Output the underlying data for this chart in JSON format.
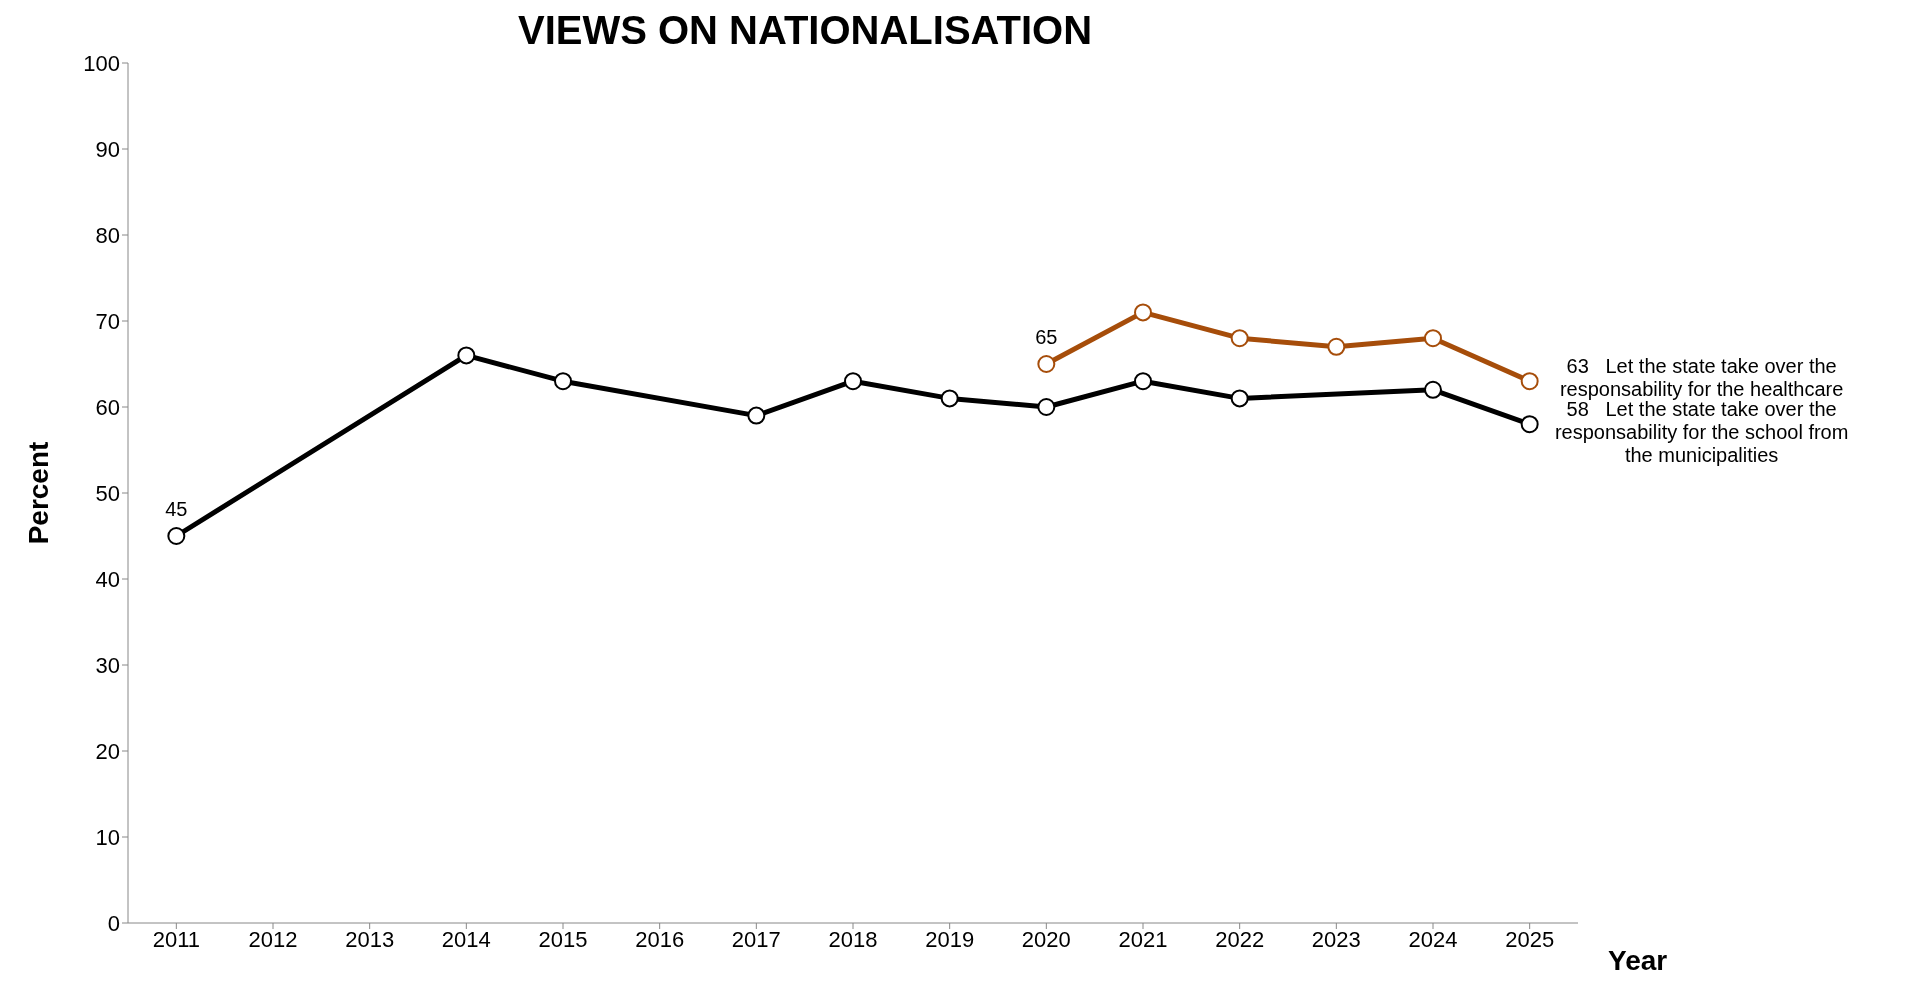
{
  "chart_data": {
    "type": "line",
    "title": "VIEWS ON NATIONALISATION",
    "xlabel": "Year",
    "ylabel": "Percent",
    "categories": [
      "2011",
      "2012",
      "2013",
      "2014",
      "2015",
      "2016",
      "2017",
      "2018",
      "2019",
      "2020",
      "2021",
      "2022",
      "2023",
      "2024",
      "2025"
    ],
    "series": [
      {
        "name": "Let the state take over the responsability for the healthcare",
        "color": "#a64d0a",
        "values": [
          null,
          null,
          null,
          null,
          null,
          null,
          null,
          null,
          null,
          65,
          71,
          68,
          67,
          68,
          63
        ],
        "value_labels": [
          null,
          null,
          null,
          null,
          null,
          null,
          null,
          null,
          null,
          "65",
          null,
          null,
          null,
          null,
          "63"
        ]
      },
      {
        "name": "Let the state take over the responsability for the school from the municipalities",
        "color": "#000000",
        "values": [
          45,
          null,
          null,
          66,
          63,
          null,
          59,
          63,
          61,
          60,
          63,
          61,
          null,
          62,
          58
        ],
        "value_labels": [
          "45",
          null,
          null,
          null,
          null,
          null,
          null,
          null,
          null,
          null,
          null,
          null,
          null,
          null,
          "58"
        ]
      }
    ],
    "ylim": [
      0,
      100
    ],
    "yticks": [
      0,
      10,
      20,
      30,
      40,
      50,
      60,
      70,
      80,
      90,
      100
    ],
    "marker": "circle",
    "line_style": "solid"
  }
}
